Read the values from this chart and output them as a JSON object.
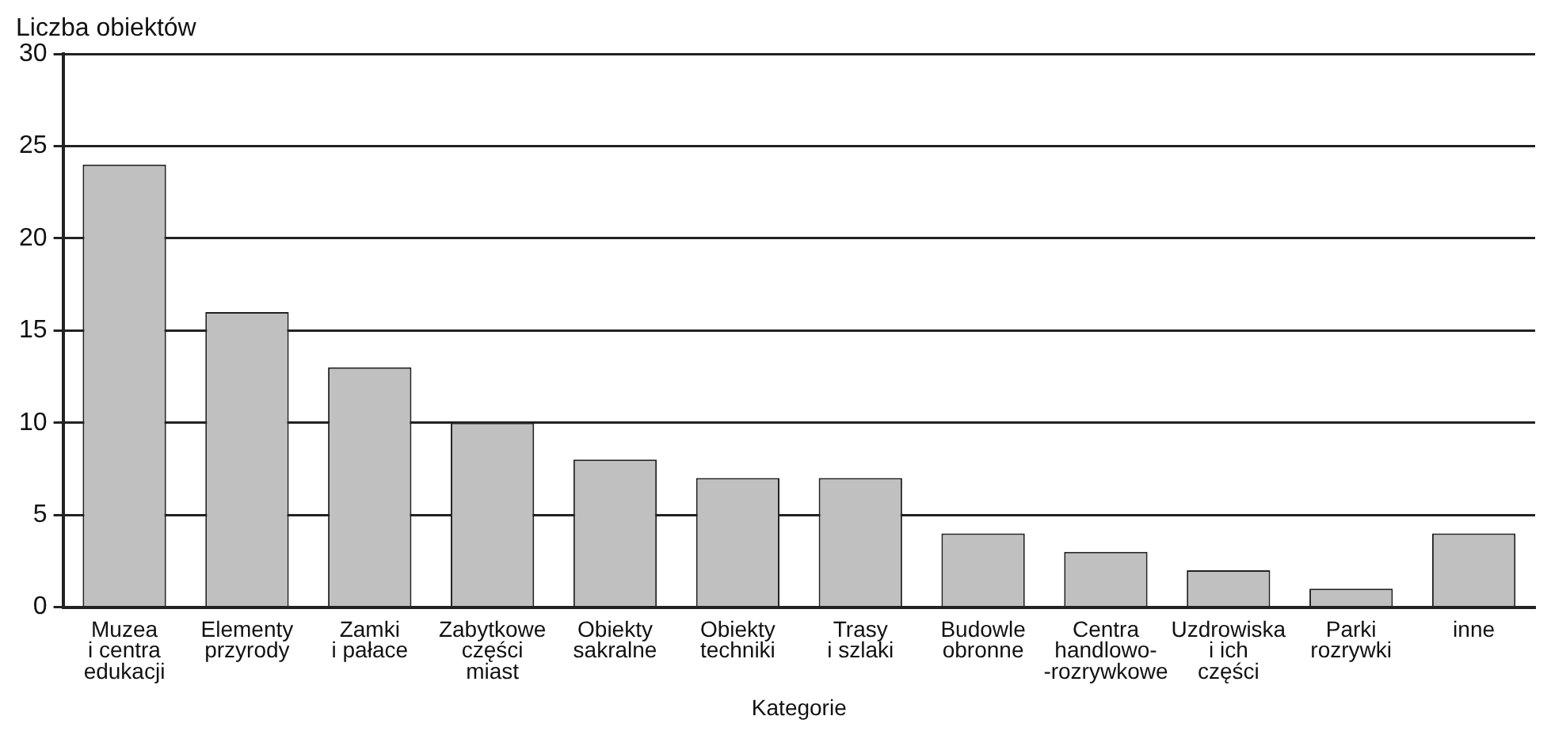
{
  "chart_data": {
    "type": "bar",
    "ylabel": "Liczba obiektów",
    "xlabel": "Kategorie",
    "categories": [
      "Muzea\ni centra\nedukacji",
      "Elementy\nprzyrody",
      "Zamki\ni pałace",
      "Zabytkowe\nczęści\nmiast",
      "Obiekty\nsakralne",
      "Obiekty\ntechniki",
      "Trasy\ni szlaki",
      "Budowle\nobronne",
      "Centra\nhandlowo-\n-rozrywkowe",
      "Uzdrowiska\ni ich\nczęści",
      "Parki\nrozrywki",
      "inne"
    ],
    "values": [
      24,
      16,
      13,
      10,
      8,
      7,
      7,
      4,
      3,
      2,
      1,
      4
    ],
    "color": "#c0c0c0",
    "ylim": [
      0,
      30
    ],
    "yticks": [
      0,
      5,
      10,
      15,
      20,
      25,
      30
    ],
    "grid": "y",
    "legend": false
  }
}
